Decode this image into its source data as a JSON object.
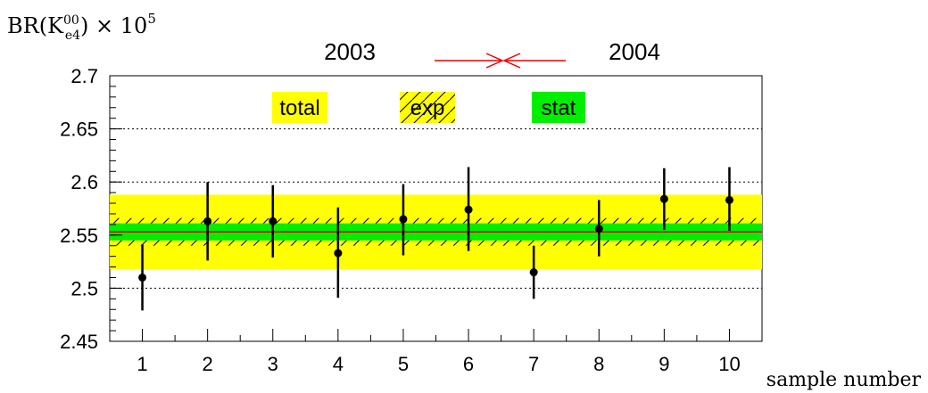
{
  "chart_data": {
    "type": "scatter",
    "y_label_base": "BR(K",
    "y_label_sup": "00",
    "y_label_sub": "e4",
    "y_label_tail": ") × 10",
    "y_label_exp": "5",
    "xlabel": "sample number",
    "xlim": [
      0.5,
      10.5
    ],
    "ylim": [
      2.45,
      2.7
    ],
    "x_ticks": [
      "1",
      "2",
      "3",
      "4",
      "5",
      "6",
      "7",
      "8",
      "9",
      "10"
    ],
    "y_ticks": [
      "2.45",
      "2.5",
      "2.55",
      "2.6",
      "2.65",
      "2.7"
    ],
    "y_tick_values": [
      2.45,
      2.5,
      2.55,
      2.6,
      2.65,
      2.7
    ],
    "grid_y": true,
    "period_labels": {
      "left": "2003",
      "right": "2004"
    },
    "legend": {
      "total": "total",
      "exp": "exp",
      "stat": "stat"
    },
    "central_value": 2.553,
    "bands": {
      "total": [
        2.518,
        2.588
      ],
      "exp": [
        2.54,
        2.566
      ],
      "stat": [
        2.545,
        2.561
      ]
    },
    "points": [
      {
        "x": 1,
        "y": 2.51,
        "lo": 2.479,
        "hi": 2.541
      },
      {
        "x": 2,
        "y": 2.563,
        "lo": 2.526,
        "hi": 2.6
      },
      {
        "x": 3,
        "y": 2.563,
        "lo": 2.529,
        "hi": 2.597
      },
      {
        "x": 4,
        "y": 2.533,
        "lo": 2.491,
        "hi": 2.576
      },
      {
        "x": 5,
        "y": 2.565,
        "lo": 2.531,
        "hi": 2.598
      },
      {
        "x": 6,
        "y": 2.574,
        "lo": 2.535,
        "hi": 2.614
      },
      {
        "x": 7,
        "y": 2.515,
        "lo": 2.49,
        "hi": 2.54
      },
      {
        "x": 8,
        "y": 2.556,
        "lo": 2.53,
        "hi": 2.583
      },
      {
        "x": 9,
        "y": 2.584,
        "lo": 2.555,
        "hi": 2.613
      },
      {
        "x": 10,
        "y": 2.583,
        "lo": 2.554,
        "hi": 2.614
      }
    ],
    "colors": {
      "total": "#ffff00",
      "stat": "#00ee00",
      "central": "#e00000",
      "arrow": "#ee0000",
      "points": "#000000"
    }
  }
}
